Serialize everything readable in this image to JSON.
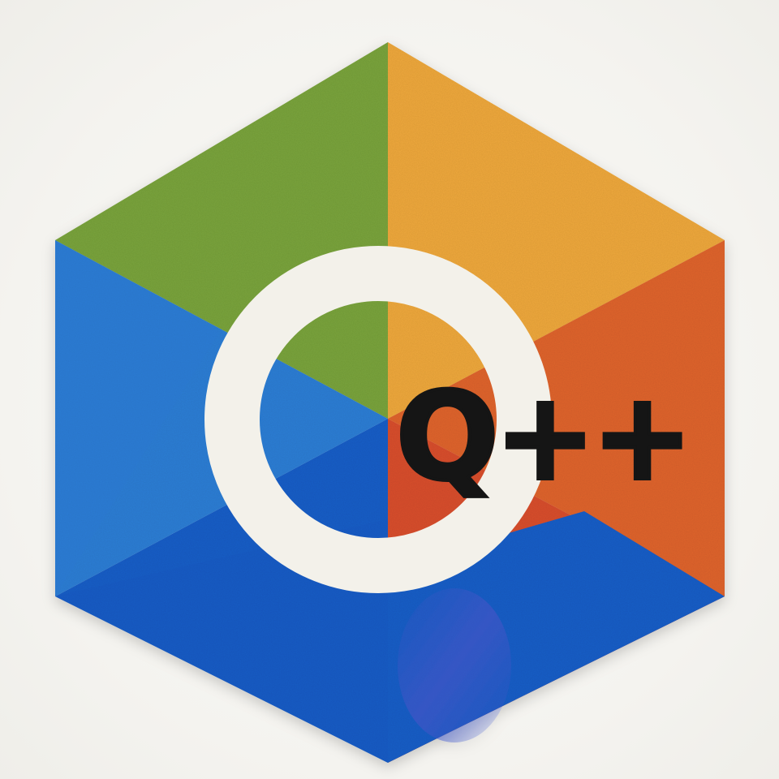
{
  "artwork": {
    "logo_text": "Q++",
    "colors": {
      "background": "#f4f3ef",
      "green_top_left": "#7aa43e",
      "yellow_top_right": "#efa93c",
      "orange_right": "#e0652e",
      "blue_left": "#2f7fd6",
      "blue_bottom": "#1f5fc8",
      "red_bottom": "#d9502e",
      "ring": "#f3f1ea",
      "text": "#151515"
    }
  }
}
